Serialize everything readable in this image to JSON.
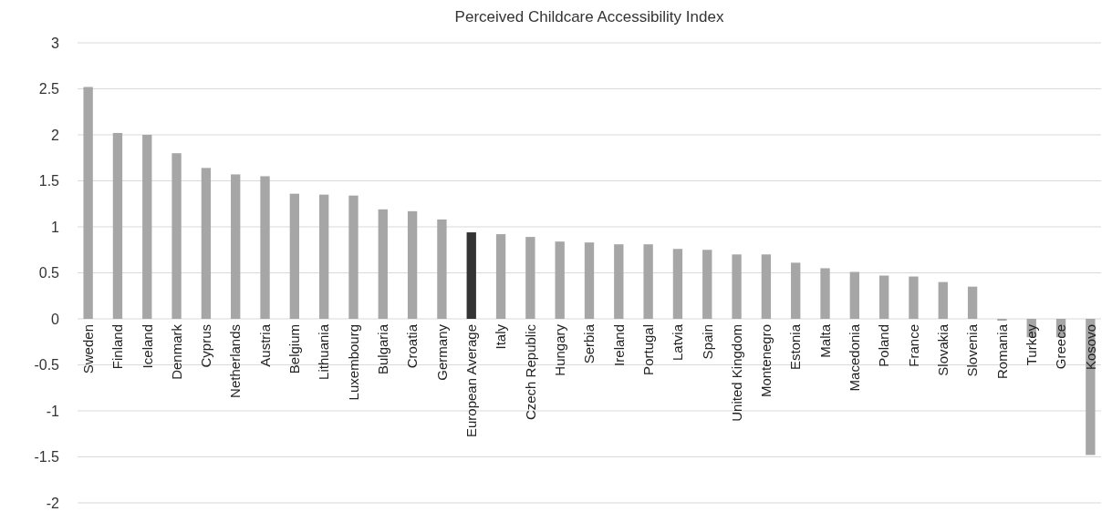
{
  "chart_data": {
    "type": "bar",
    "title": "Perceived Childcare Accessibility Index",
    "categories": [
      "Sweden",
      "Finland",
      "Iceland",
      "Denmark",
      "Cyprus",
      "Netherlands",
      "Austria",
      "Belgium",
      "Lithuania",
      "Luxembourg",
      "Bulgaria",
      "Croatia",
      "Germany",
      "European Average",
      "Italy",
      "Czech Republic",
      "Hungary",
      "Serbia",
      "Ireland",
      "Portugal",
      "Latvia",
      "Spain",
      "United Kingdom",
      "Montenegro",
      "Estonia",
      "Malta",
      "Macedonia",
      "Poland",
      "France",
      "Slovakia",
      "Slovenia",
      "Romania",
      "Turkey",
      "Greece",
      "Kosovo"
    ],
    "values": [
      2.52,
      2.02,
      2.0,
      1.8,
      1.64,
      1.57,
      1.55,
      1.36,
      1.35,
      1.34,
      1.19,
      1.17,
      1.08,
      0.94,
      0.92,
      0.89,
      0.84,
      0.83,
      0.81,
      0.81,
      0.76,
      0.75,
      0.7,
      0.7,
      0.61,
      0.55,
      0.51,
      0.47,
      0.46,
      0.4,
      0.35,
      -0.02,
      -0.2,
      -0.2,
      -1.48
    ],
    "colors": [
      "#a6a6a6",
      "#a6a6a6",
      "#a6a6a6",
      "#a6a6a6",
      "#a6a6a6",
      "#a6a6a6",
      "#a6a6a6",
      "#a6a6a6",
      "#a6a6a6",
      "#a6a6a6",
      "#a6a6a6",
      "#a6a6a6",
      "#a6a6a6",
      "#333333",
      "#a6a6a6",
      "#a6a6a6",
      "#a6a6a6",
      "#a6a6a6",
      "#a6a6a6",
      "#a6a6a6",
      "#a6a6a6",
      "#a6a6a6",
      "#a6a6a6",
      "#a6a6a6",
      "#a6a6a6",
      "#a6a6a6",
      "#a6a6a6",
      "#a6a6a6",
      "#a6a6a6",
      "#a6a6a6",
      "#a6a6a6",
      "#a6a6a6",
      "#a6a6a6",
      "#a6a6a6",
      "#a6a6a6"
    ],
    "ylim": [
      -2,
      3
    ],
    "yticks": [
      -2,
      -1.5,
      -1,
      -0.5,
      0,
      0.5,
      1,
      1.5,
      2,
      2.5,
      3
    ],
    "grid": "y"
  }
}
